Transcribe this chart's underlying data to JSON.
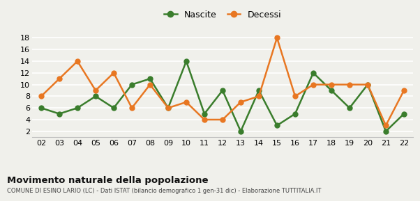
{
  "years": [
    "02",
    "03",
    "04",
    "05",
    "06",
    "07",
    "08",
    "09",
    "10",
    "11",
    "12",
    "13",
    "14",
    "15",
    "16",
    "17",
    "18",
    "19",
    "20",
    "21",
    "22"
  ],
  "nascite": [
    6,
    5,
    6,
    8,
    6,
    10,
    11,
    6,
    14,
    5,
    9,
    2,
    9,
    3,
    5,
    12,
    9,
    6,
    10,
    2,
    5
  ],
  "decessi": [
    8,
    11,
    14,
    9,
    12,
    6,
    10,
    6,
    7,
    4,
    4,
    7,
    8,
    18,
    8,
    10,
    10,
    10,
    10,
    3,
    9
  ],
  "nascite_color": "#3a7d2c",
  "decessi_color": "#e87722",
  "background_color": "#f0f0eb",
  "grid_color": "#ffffff",
  "title": "Movimento naturale della popolazione",
  "subtitle": "COMUNE DI ESINO LARIO (LC) - Dati ISTAT (bilancio demografico 1 gen-31 dic) - Elaborazione TUTTITALIA.IT",
  "yticks": [
    2,
    4,
    6,
    8,
    10,
    12,
    14,
    16,
    18
  ],
  "ylim": [
    1.0,
    19.0
  ],
  "marker_size": 5,
  "line_width": 1.8
}
